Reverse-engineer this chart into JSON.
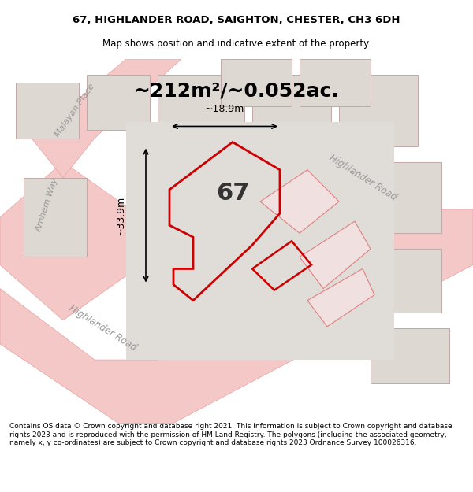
{
  "title_line1": "67, HIGHLANDER ROAD, SAIGHTON, CHESTER, CH3 6DH",
  "title_line2": "Map shows position and indicative extent of the property.",
  "area_text": "~212m²/~0.052ac.",
  "label_67": "67",
  "dim_vertical": "~33.9m",
  "dim_horizontal": "~18.9m",
  "footer_text": "Contains OS data © Crown copyright and database right 2021. This information is subject to Crown copyright and database rights 2023 and is reproduced with the permission of HM Land Registry. The polygons (including the associated geometry, namely x, y co-ordinates) are subject to Crown copyright and database rights 2023 Ordnance Survey 100026316.",
  "bg_color": "#f0eeec",
  "map_bg": "#e8e4e0",
  "road_color": "#f5c8c8",
  "road_stroke": "#e8a0a0",
  "highlight_color": "#cc0000",
  "highlight_fill": "none",
  "plot_bg": "#d8d4d0",
  "street_label_color": "#888888",
  "white_bg": "#ffffff"
}
